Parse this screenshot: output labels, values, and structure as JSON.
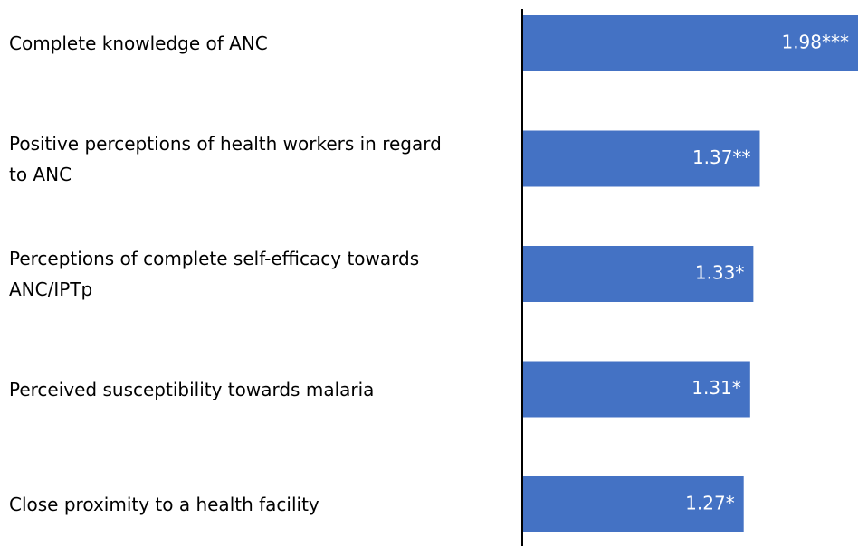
{
  "chart_data": {
    "type": "barh",
    "categories": [
      "Complete knowledge of ANC",
      "Positive perceptions of health workers in regard to ANC",
      "Perceptions of complete self-efficacy towards ANC/IPTp",
      "Perceived susceptibility towards malaria",
      "Close proximity to a health facility"
    ],
    "values": [
      1.98,
      1.37,
      1.33,
      1.31,
      1.27
    ],
    "value_labels": [
      "1.98***",
      "1.37**",
      "1.33*",
      "1.31*",
      "1.27*"
    ],
    "color": "#4472c4",
    "xlim": [
      -0.1,
      1.98
    ]
  }
}
